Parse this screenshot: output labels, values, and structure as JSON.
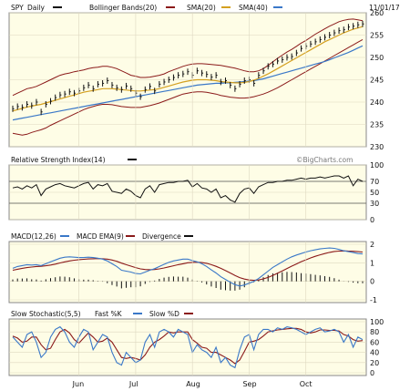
{
  "chart_data": [
    {
      "type": "line",
      "panel": "price",
      "legend": {
        "ticker": "SPY",
        "period": "Daily",
        "bb": "Bollinger Bands(20)",
        "sma20": "SMA(20)",
        "sma40": "SMA(40)"
      },
      "date_label": "11/01/17",
      "ylim": [
        230,
        260
      ],
      "yticks": [
        "260",
        "255",
        "250",
        "245",
        "240",
        "235",
        "230"
      ],
      "colors": {
        "price": "#111111",
        "bb": "#8b1a1a",
        "sma20": "#d4a020",
        "sma40": "#3a78c8"
      },
      "series": [
        {
          "key": "price",
          "values": [
            238.5,
            239.0,
            238.8,
            239.5,
            239.2,
            240.0,
            237.8,
            239.5,
            240.2,
            241.0,
            241.6,
            241.8,
            242.3,
            242.0,
            242.5,
            243.2,
            243.8,
            243.0,
            244.0,
            244.2,
            244.8,
            243.8,
            243.2,
            242.8,
            243.6,
            243.0,
            242.0,
            241.2,
            242.8,
            243.5,
            242.5,
            244.0,
            244.5,
            245.0,
            245.5,
            246.0,
            246.3,
            246.8,
            246.0,
            247.0,
            246.5,
            246.2,
            245.6,
            246.0,
            244.5,
            244.8,
            243.8,
            243.0,
            244.0,
            244.8,
            245.0,
            244.2,
            246.0,
            247.0,
            248.0,
            248.5,
            249.2,
            249.5,
            250.0,
            250.2,
            251.0,
            252.0,
            252.5,
            253.0,
            253.5,
            254.0,
            254.5,
            255.0,
            255.5,
            256.0,
            256.2,
            256.8,
            257.0,
            257.3,
            257.5
          ]
        },
        {
          "key": "bb_upper",
          "values": [
            241.5,
            242.0,
            242.5,
            243.0,
            243.2,
            243.5,
            244.0,
            244.5,
            245.0,
            245.5,
            246.0,
            246.3,
            246.5,
            246.8,
            247.0,
            247.2,
            247.5,
            247.7,
            247.8,
            248.0,
            248.0,
            247.8,
            247.5,
            247.0,
            246.5,
            246.0,
            245.8,
            245.5,
            245.5,
            245.6,
            245.8,
            246.0,
            246.3,
            246.8,
            247.2,
            247.6,
            248.0,
            248.3,
            248.5,
            248.6,
            248.6,
            248.5,
            248.4,
            248.3,
            248.2,
            248.0,
            247.8,
            247.6,
            247.3,
            247.0,
            246.8,
            246.8,
            247.0,
            247.5,
            248.2,
            249.0,
            249.8,
            250.5,
            251.2,
            251.8,
            252.5,
            253.2,
            253.8,
            254.5,
            255.2,
            255.8,
            256.4,
            257.0,
            257.5,
            258.0,
            258.3,
            258.5,
            258.6,
            258.4,
            258.2
          ]
        },
        {
          "key": "sma20",
          "values": [
            238.0,
            238.3,
            238.6,
            238.9,
            239.1,
            239.3,
            239.5,
            239.8,
            240.1,
            240.4,
            240.7,
            241.0,
            241.3,
            241.6,
            241.9,
            242.2,
            242.4,
            242.6,
            242.8,
            243.0,
            243.0,
            243.0,
            242.9,
            242.8,
            242.7,
            242.6,
            242.5,
            242.5,
            242.6,
            242.7,
            242.8,
            243.0,
            243.3,
            243.6,
            243.9,
            244.2,
            244.5,
            244.7,
            244.9,
            245.0,
            245.0,
            245.0,
            244.9,
            244.8,
            244.6,
            244.5,
            244.4,
            244.3,
            244.3,
            244.4,
            244.6,
            244.9,
            245.3,
            245.8,
            246.3,
            246.9,
            247.5,
            248.1,
            248.7,
            249.3,
            249.9,
            250.5,
            251.1,
            251.7,
            252.3,
            252.9,
            253.5,
            254.0,
            254.5,
            255.0,
            255.5,
            255.9,
            256.3,
            256.6,
            256.9
          ]
        },
        {
          "key": "bb_lower",
          "values": [
            233.0,
            232.8,
            232.6,
            232.8,
            233.2,
            233.5,
            233.8,
            234.2,
            234.8,
            235.3,
            235.8,
            236.3,
            236.8,
            237.3,
            237.8,
            238.3,
            238.7,
            239.0,
            239.3,
            239.5,
            239.5,
            239.4,
            239.2,
            239.0,
            238.9,
            238.8,
            238.8,
            238.8,
            239.0,
            239.2,
            239.5,
            239.8,
            240.2,
            240.6,
            241.0,
            241.4,
            241.8,
            242.0,
            242.2,
            242.3,
            242.3,
            242.2,
            242.0,
            241.8,
            241.5,
            241.3,
            241.1,
            241.0,
            240.9,
            240.9,
            241.0,
            241.2,
            241.5,
            241.8,
            242.2,
            242.7,
            243.2,
            243.8,
            244.4,
            245.0,
            245.6,
            246.2,
            246.8,
            247.4,
            248.0,
            248.6,
            249.2,
            249.8,
            250.4,
            251.0,
            251.6,
            252.2,
            252.8,
            253.4,
            254.0
          ]
        },
        {
          "key": "sma40",
          "values": [
            236.0,
            236.2,
            236.4,
            236.6,
            236.8,
            237.0,
            237.2,
            237.4,
            237.6,
            237.8,
            238.0,
            238.2,
            238.4,
            238.6,
            238.8,
            239.0,
            239.2,
            239.4,
            239.6,
            239.8,
            240.0,
            240.2,
            240.4,
            240.6,
            240.8,
            241.0,
            241.2,
            241.4,
            241.6,
            241.8,
            242.0,
            242.2,
            242.4,
            242.6,
            242.8,
            243.0,
            243.2,
            243.4,
            243.6,
            243.8,
            243.9,
            244.0,
            244.1,
            244.2,
            244.2,
            244.3,
            244.3,
            244.4,
            244.5,
            244.6,
            244.7,
            244.8,
            245.0,
            245.2,
            245.5,
            245.8,
            246.1,
            246.4,
            246.7,
            247.0,
            247.3,
            247.6,
            247.9,
            248.2,
            248.5,
            248.8,
            249.1,
            249.5,
            249.9,
            250.3,
            250.7,
            251.1,
            251.6,
            252.1,
            252.6
          ]
        }
      ]
    },
    {
      "type": "line",
      "panel": "rsi",
      "legend": {
        "label": "Relative Strength Index(14)",
        "watermark": "©BigCharts.com"
      },
      "ylim": [
        0,
        100
      ],
      "yticks": [
        "100",
        "70",
        "50",
        "30",
        "0"
      ],
      "series": [
        {
          "key": "rsi",
          "values": [
            58,
            60,
            56,
            62,
            58,
            64,
            44,
            56,
            60,
            64,
            66,
            62,
            60,
            58,
            62,
            66,
            68,
            56,
            64,
            62,
            66,
            52,
            50,
            48,
            56,
            52,
            44,
            40,
            56,
            62,
            50,
            64,
            66,
            68,
            68,
            70,
            70,
            72,
            60,
            66,
            58,
            56,
            50,
            56,
            40,
            44,
            36,
            32,
            48,
            56,
            58,
            48,
            60,
            64,
            68,
            68,
            70,
            70,
            72,
            72,
            74,
            76,
            74,
            76,
            76,
            78,
            76,
            78,
            80,
            80,
            76,
            80,
            62,
            74,
            70
          ]
        }
      ]
    },
    {
      "type": "line",
      "panel": "macd",
      "legend": {
        "macd": "MACD(12,26)",
        "ema": "MACD EMA(9)",
        "div": "Divergence"
      },
      "ylim": [
        -1,
        2
      ],
      "yticks": [
        "2",
        "1",
        "0",
        "-1"
      ],
      "colors": {
        "macd": "#3a78c8",
        "ema": "#8b1a1a",
        "hist": "#111111"
      },
      "series": [
        {
          "key": "macd",
          "values": [
            0.7,
            0.8,
            0.85,
            0.9,
            0.88,
            0.9,
            0.85,
            0.95,
            1.05,
            1.15,
            1.25,
            1.3,
            1.32,
            1.3,
            1.28,
            1.28,
            1.3,
            1.28,
            1.25,
            1.2,
            1.1,
            0.95,
            0.8,
            0.6,
            0.55,
            0.5,
            0.42,
            0.4,
            0.5,
            0.6,
            0.68,
            0.8,
            0.92,
            1.02,
            1.1,
            1.15,
            1.2,
            1.2,
            1.12,
            1.05,
            0.95,
            0.8,
            0.62,
            0.45,
            0.25,
            0.1,
            -0.05,
            -0.18,
            -0.25,
            -0.2,
            -0.1,
            0.0,
            0.15,
            0.35,
            0.55,
            0.75,
            0.9,
            1.05,
            1.2,
            1.32,
            1.42,
            1.5,
            1.58,
            1.65,
            1.7,
            1.75,
            1.78,
            1.8,
            1.78,
            1.72,
            1.65,
            1.6,
            1.55,
            1.5,
            1.48
          ]
        },
        {
          "key": "ema",
          "values": [
            0.6,
            0.65,
            0.7,
            0.74,
            0.77,
            0.8,
            0.81,
            0.84,
            0.88,
            0.93,
            0.99,
            1.05,
            1.1,
            1.14,
            1.17,
            1.19,
            1.21,
            1.22,
            1.23,
            1.22,
            1.2,
            1.15,
            1.08,
            0.98,
            0.9,
            0.82,
            0.74,
            0.67,
            0.64,
            0.63,
            0.64,
            0.67,
            0.72,
            0.78,
            0.84,
            0.9,
            0.95,
            1.0,
            1.02,
            1.03,
            1.01,
            0.97,
            0.9,
            0.81,
            0.7,
            0.58,
            0.45,
            0.32,
            0.2,
            0.12,
            0.07,
            0.05,
            0.07,
            0.13,
            0.21,
            0.32,
            0.44,
            0.56,
            0.69,
            0.82,
            0.94,
            1.06,
            1.16,
            1.26,
            1.35,
            1.43,
            1.5,
            1.56,
            1.61,
            1.63,
            1.64,
            1.63,
            1.62,
            1.6,
            1.58
          ]
        }
      ]
    },
    {
      "type": "line",
      "panel": "stoch",
      "legend": {
        "label": "Slow Stochastic(5,5)",
        "fast": "Fast %K",
        "slow": "Slow %D"
      },
      "ylim": [
        0,
        100
      ],
      "yticks": [
        "100",
        "80",
        "60",
        "40",
        "20",
        "0"
      ],
      "colors": {
        "k": "#3a78c8",
        "d": "#8b1a1a"
      },
      "series": [
        {
          "key": "k",
          "values": [
            70,
            60,
            50,
            75,
            80,
            60,
            30,
            40,
            70,
            85,
            90,
            80,
            60,
            50,
            70,
            85,
            80,
            45,
            60,
            75,
            70,
            40,
            20,
            15,
            40,
            30,
            20,
            25,
            60,
            75,
            50,
            80,
            85,
            80,
            70,
            85,
            80,
            75,
            40,
            55,
            45,
            40,
            30,
            50,
            20,
            30,
            15,
            10,
            45,
            70,
            75,
            45,
            75,
            85,
            85,
            80,
            88,
            85,
            90,
            88,
            85,
            80,
            75,
            80,
            85,
            88,
            80,
            82,
            85,
            80,
            60,
            75,
            50,
            70,
            65
          ]
        },
        {
          "key": "d",
          "values": [
            72,
            68,
            60,
            62,
            70,
            70,
            55,
            45,
            48,
            65,
            80,
            85,
            78,
            65,
            58,
            68,
            78,
            70,
            60,
            62,
            68,
            60,
            45,
            30,
            28,
            30,
            28,
            25,
            35,
            50,
            60,
            65,
            72,
            80,
            78,
            80,
            80,
            80,
            65,
            58,
            50,
            48,
            40,
            40,
            35,
            30,
            25,
            18,
            25,
            42,
            60,
            62,
            65,
            72,
            80,
            82,
            84,
            85,
            86,
            87,
            87,
            85,
            80,
            78,
            80,
            84,
            84,
            83,
            83,
            82,
            75,
            72,
            65,
            62,
            63
          ]
        }
      ]
    },
    {
      "type": "axis",
      "panel": "time",
      "months": [
        {
          "label": "Jun",
          "index": 14
        },
        {
          "label": "Jul",
          "index": 26
        },
        {
          "label": "Aug",
          "index": 38
        },
        {
          "label": "Sep",
          "index": 50
        },
        {
          "label": "Oct",
          "index": 62
        }
      ]
    }
  ]
}
